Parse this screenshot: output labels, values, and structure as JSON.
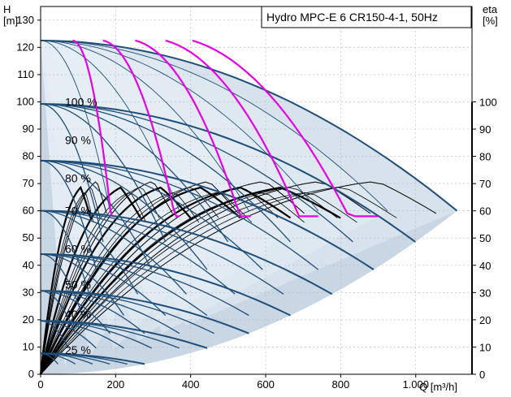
{
  "chart_data": {
    "type": "line",
    "title": "Hydro MPC-E 6 CR150-4-1, 50Hz",
    "y_label": "H",
    "y_unit": "[m]",
    "y2_label": "eta",
    "y2_unit": "[%]",
    "x_label": "Q [m³/h]",
    "x_ticks": [
      {
        "v": 0,
        "label": "0"
      },
      {
        "v": 200,
        "label": "200"
      },
      {
        "v": 400,
        "label": "400"
      },
      {
        "v": 600,
        "label": "600"
      },
      {
        "v": 800,
        "label": "800"
      },
      {
        "v": 1000,
        "label": "1.000"
      }
    ],
    "y_ticks": [
      0,
      10,
      20,
      30,
      40,
      50,
      60,
      70,
      80,
      90,
      100,
      110,
      120,
      130
    ],
    "y2_ticks": [
      0,
      10,
      20,
      30,
      40,
      50,
      60,
      70,
      80,
      90,
      100
    ],
    "xlim": [
      0,
      1150
    ],
    "ylim": [
      0,
      135
    ],
    "speed_labels": [
      "100 %",
      "90 %",
      "80 %",
      "70 %",
      "60 %",
      "50 %",
      "40 %",
      "25 %"
    ],
    "speed_fractions": [
      1.0,
      0.9,
      0.8,
      0.7,
      0.6,
      0.5,
      0.4,
      0.25
    ],
    "pumps": 6,
    "single_pump_max_q": 185,
    "shut_off_head": 122.5,
    "colors": {
      "region": "#c9d6e3",
      "region_light": "#e6edf5",
      "head_curve": "#1f4e79",
      "system_curve": "#e400e4",
      "efficiency": "#000000"
    }
  }
}
